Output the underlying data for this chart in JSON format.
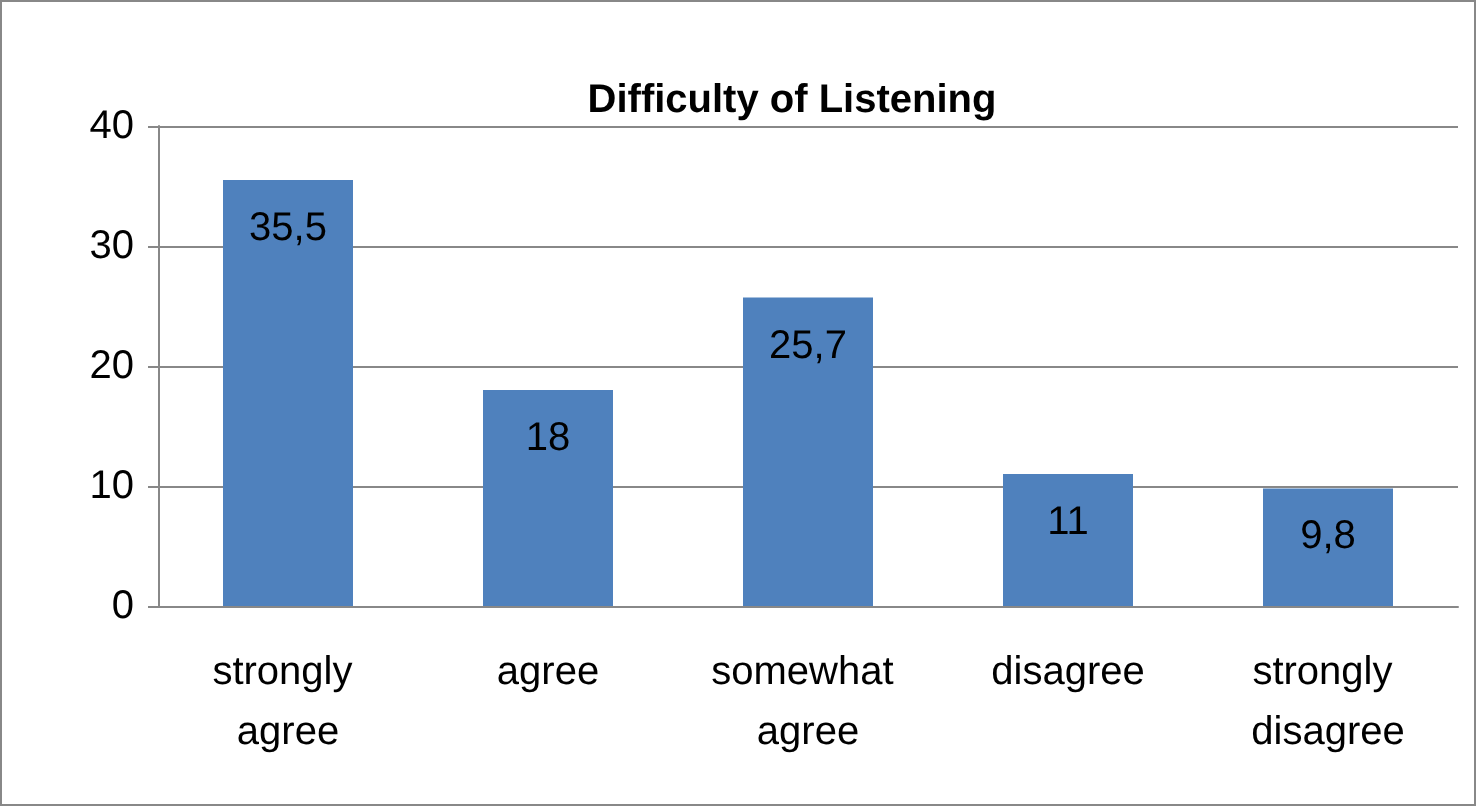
{
  "chart_data": {
    "type": "bar",
    "title": "Difficulty of Listening",
    "categories": [
      "strongly agree",
      "agree",
      "somewhat agree",
      "disagree",
      "strongly disagree"
    ],
    "values": [
      35.5,
      18,
      25.7,
      11,
      9.8
    ],
    "value_labels": [
      "35,5",
      "18",
      "25,7",
      "11",
      "9,8"
    ],
    "color": "#4f81bd",
    "ylim": [
      0,
      40
    ],
    "yticks": [
      0,
      10,
      20,
      30,
      40
    ],
    "grid": "y"
  }
}
